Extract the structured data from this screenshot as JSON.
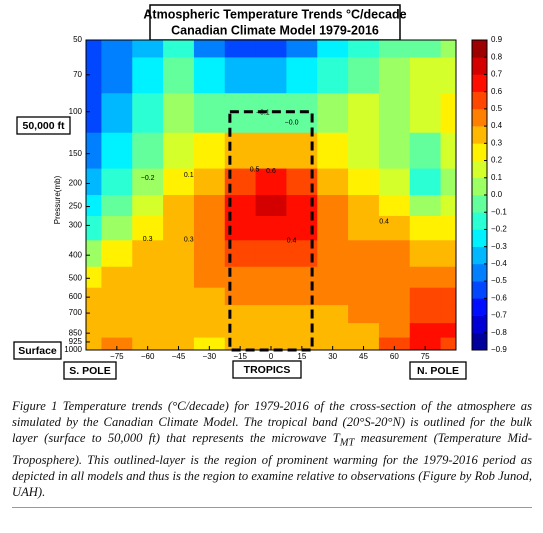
{
  "chart_data": {
    "type": "contour",
    "title": "Atmospheric Temperature Trends °C/decade",
    "subtitle": "Canadian Climate Model 1979-2016",
    "ylabel": "Pressure(mb)",
    "x": [
      -90,
      -75,
      -60,
      -45,
      -30,
      -15,
      0,
      15,
      30,
      45,
      60,
      75,
      90
    ],
    "pressure": [
      50,
      70,
      100,
      150,
      200,
      250,
      300,
      400,
      500,
      600,
      700,
      850,
      925,
      1000
    ],
    "z": [
      [
        -0.6,
        -0.5,
        -0.4,
        -0.2,
        -0.5,
        -0.6,
        -0.6,
        -0.5,
        -0.3,
        -0.2,
        -0.1,
        -0.1,
        0
      ],
      [
        -0.6,
        -0.5,
        -0.3,
        -0.1,
        -0.3,
        -0.4,
        -0.4,
        -0.3,
        -0.2,
        -0.1,
        0,
        0.1,
        0.1
      ],
      [
        -0.6,
        -0.4,
        -0.2,
        0,
        -0.1,
        -0.1,
        -0.1,
        -0.1,
        0,
        0.1,
        0,
        0.1,
        0.2
      ],
      [
        -0.5,
        -0.3,
        -0.1,
        0.1,
        0.2,
        0.3,
        0.3,
        0.3,
        0.2,
        0.1,
        0,
        -0.1,
        0.1
      ],
      [
        -0.4,
        -0.2,
        0,
        0.2,
        0.3,
        0.5,
        0.6,
        0.5,
        0.3,
        0.2,
        0.1,
        -0.2,
        0
      ],
      [
        -0.3,
        -0.1,
        0.1,
        0.3,
        0.4,
        0.6,
        0.7,
        0.6,
        0.4,
        0.3,
        0.2,
        0,
        0.1
      ],
      [
        -0.2,
        0,
        0.2,
        0.3,
        0.4,
        0.6,
        0.6,
        0.6,
        0.4,
        0.3,
        0.3,
        0.2,
        0.2
      ],
      [
        0,
        0.2,
        0.3,
        0.3,
        0.4,
        0.5,
        0.5,
        0.5,
        0.4,
        0.4,
        0.4,
        0.3,
        0.3
      ],
      [
        0.2,
        0.3,
        0.3,
        0.3,
        0.4,
        0.4,
        0.4,
        0.4,
        0.4,
        0.4,
        0.4,
        0.4,
        0.4
      ],
      [
        0.3,
        0.3,
        0.3,
        0.3,
        0.3,
        0.4,
        0.4,
        0.4,
        0.4,
        0.4,
        0.4,
        0.5,
        0.5
      ],
      [
        0.3,
        0.3,
        0.3,
        0.3,
        0.3,
        0.3,
        0.3,
        0.3,
        0.3,
        0.4,
        0.4,
        0.5,
        0.5
      ],
      [
        0.3,
        0.3,
        0.3,
        0.3,
        0.3,
        0.3,
        0.3,
        0.3,
        0.3,
        0.3,
        0.4,
        0.6,
        0.6
      ],
      [
        0.3,
        0.4,
        0.3,
        0.3,
        0.2,
        0.3,
        0.3,
        0.3,
        0.3,
        0.3,
        0.5,
        0.6,
        0.5
      ],
      [
        0.3,
        0.4,
        0.3,
        0.3,
        0.2,
        0.3,
        0.3,
        0.3,
        0.3,
        0.3,
        0.5,
        0.6,
        0.5
      ]
    ],
    "xlim": [
      -90,
      90
    ],
    "ylim": [
      50,
      1000
    ],
    "log_y": true,
    "invert_y": true,
    "xticks": [
      {
        "value": -75,
        "label": "−75"
      },
      {
        "value": -60,
        "label": "−60"
      },
      {
        "value": -45,
        "label": "−45"
      },
      {
        "value": -30,
        "label": "−30"
      },
      {
        "value": -15,
        "label": "−15"
      },
      0,
      15,
      30,
      45,
      60,
      75
    ],
    "yticks": [
      50,
      70,
      100,
      150,
      200,
      250,
      300,
      400,
      500,
      600,
      700,
      850,
      925,
      1000
    ],
    "clim": [
      -0.9,
      0.9
    ],
    "colors": [
      "#00009c",
      "#0000d4",
      "#000eff",
      "#0047ff",
      "#0080ff",
      "#00b8ff",
      "#00f1ff",
      "#2bffd4",
      "#63ff9c",
      "#9cff63",
      "#d4ff2b",
      "#fff100",
      "#ffb800",
      "#ff8000",
      "#ff4700",
      "#ff0e00",
      "#d40000",
      "#9c0000"
    ],
    "colorbar_ticks": [
      {
        "value": -0.9,
        "label": "−0.9"
      },
      {
        "value": -0.8,
        "label": "−0.8"
      },
      {
        "value": -0.7,
        "label": "−0.7"
      },
      {
        "value": -0.6,
        "label": "−0.6"
      },
      {
        "value": -0.5,
        "label": "−0.5"
      },
      {
        "value": -0.4,
        "label": "−0.4"
      },
      {
        "value": -0.3,
        "label": "−0.3"
      },
      {
        "value": -0.2,
        "label": "−0.2"
      },
      {
        "value": -0.1,
        "label": "−0.1"
      },
      {
        "value": 0,
        "label": "0.0"
      },
      0.1,
      0.2,
      0.3,
      0.4,
      0.5,
      0.6,
      0.7,
      0.8,
      0.9
    ],
    "contour_labels": [
      0.6,
      0.5,
      0.4,
      0.3,
      0.1,
      {
        "value": -0.2,
        "label": "−0.2"
      },
      {
        "value": 0,
        "label": "−0.0"
      },
      {
        "value": -0.1,
        "label": "−0.1"
      },
      0.4,
      0.3
    ],
    "band_x": [
      -20,
      20
    ],
    "band_top": 100,
    "annotations": {
      "altitude": "50,000 ft",
      "surface": "Surface",
      "south": "S. POLE",
      "tropics": "TROPICS",
      "north": "N. POLE"
    }
  },
  "caption": {
    "before": "Figure 1  Temperature trends (°C/decade) for 1979-2016 of the cross-section of the atmosphere as simulated by the Canadian Climate Model. The tropical band (20°S-20°N) is outlined for the bulk layer (surface to 50,000 ft) that represents the microwave ",
    "symbol": "T",
    "subscript": "MT",
    "after": " measurement (Temperature Mid-Troposphere).  This outlined-layer is the region of prominent warming for the 1979-2016 period as depicted in all models and thus is the region to examine relative to observations (Figure by Rob Junod, UAH)."
  }
}
